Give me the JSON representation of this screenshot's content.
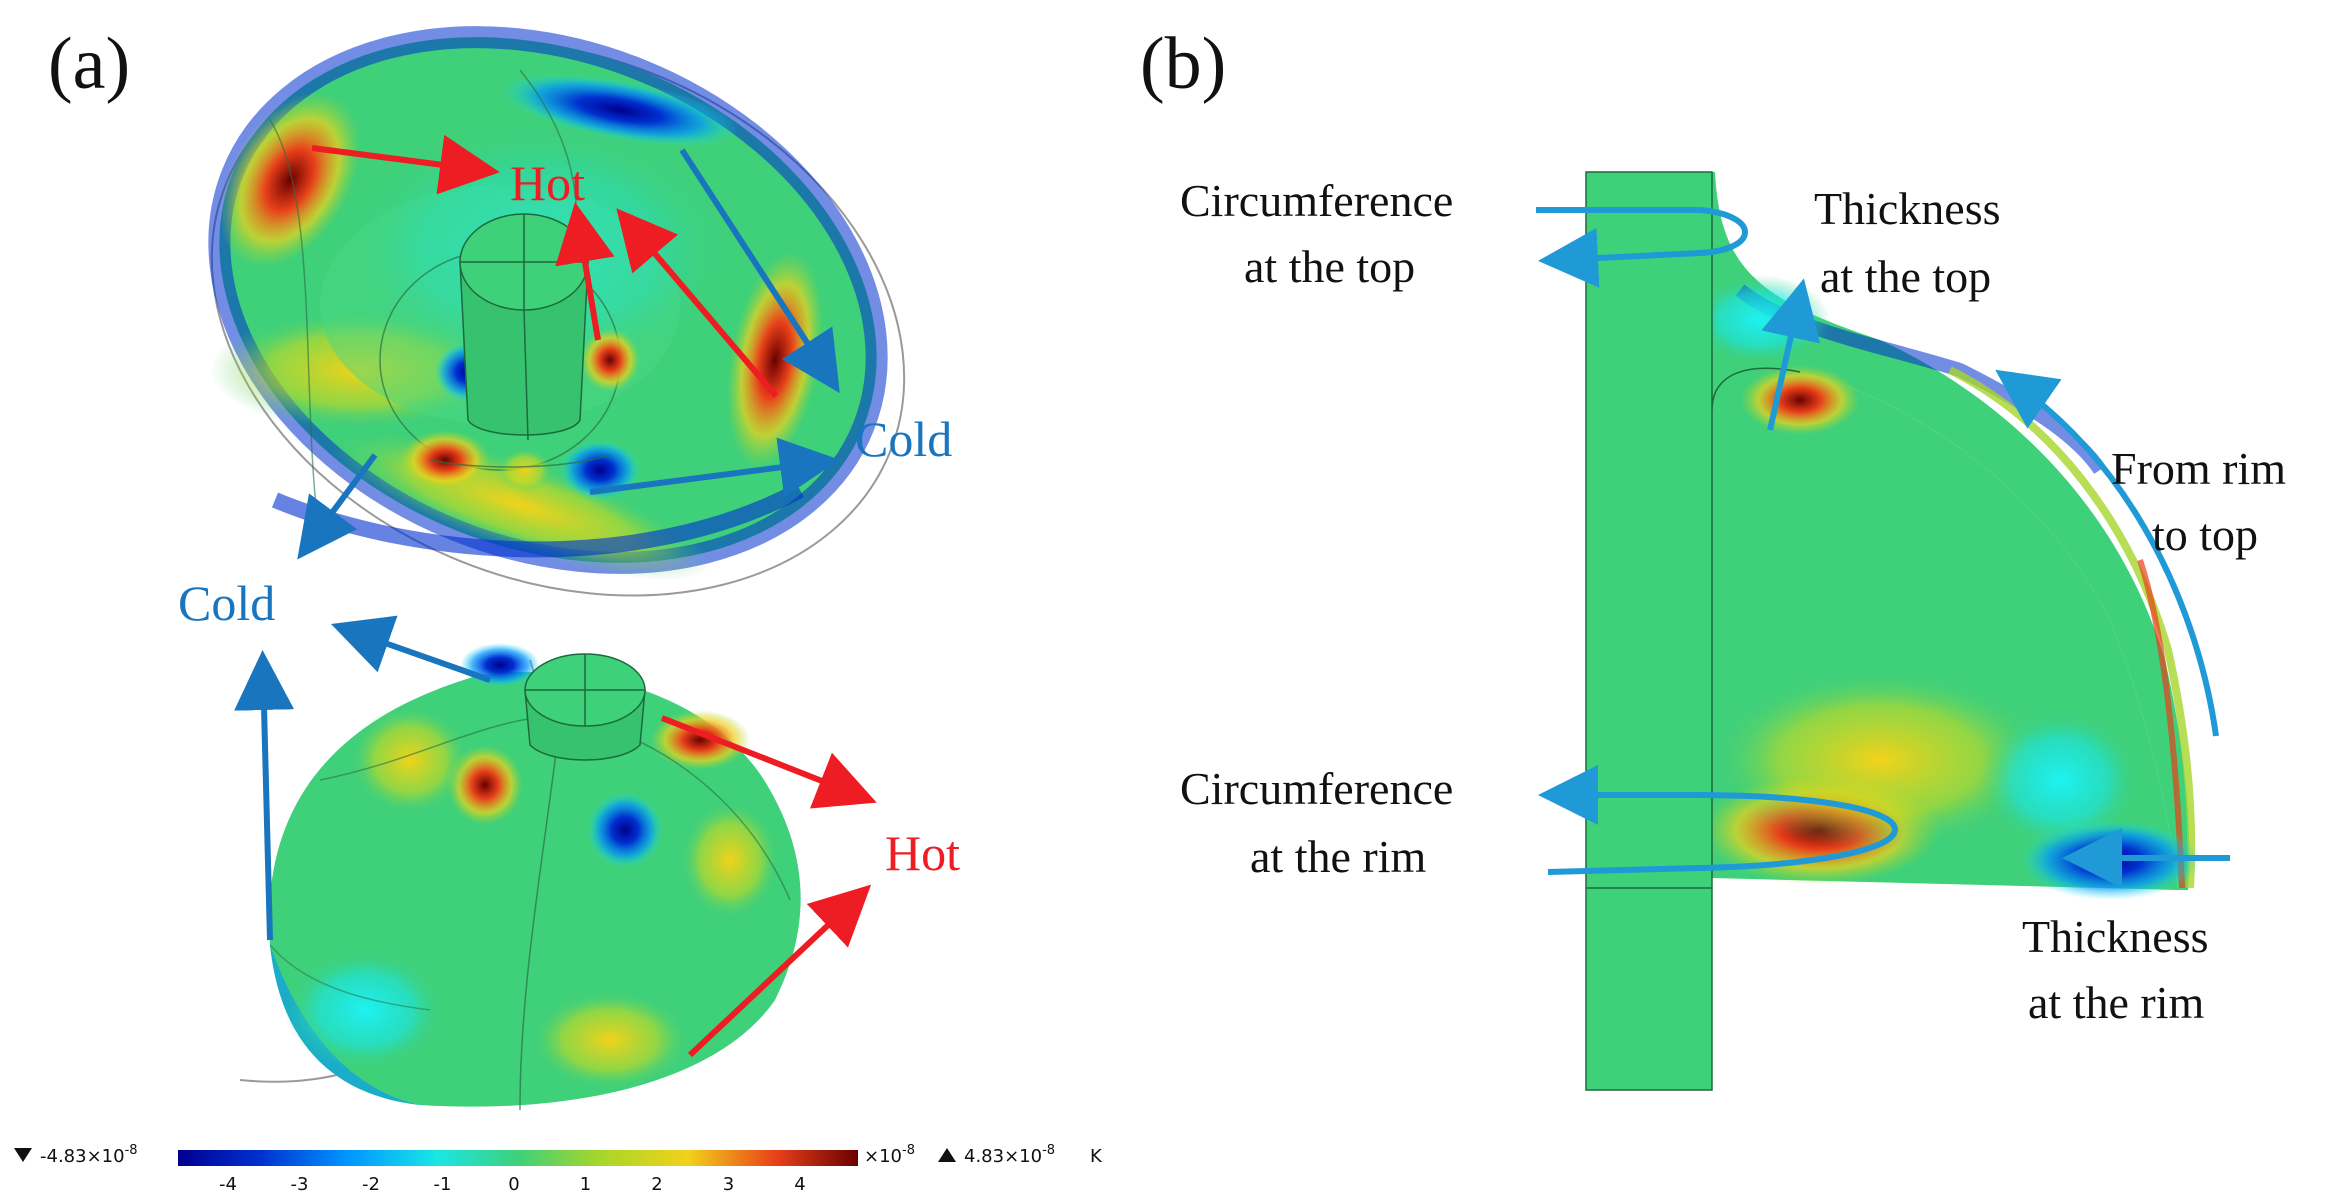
{
  "panels": {
    "a": {
      "label": "(a)"
    },
    "b": {
      "label": "(b)"
    }
  },
  "annotations_a": {
    "hot_top": "Hot",
    "cold_right": "Cold",
    "cold_left": "Cold",
    "hot_bottom": "Hot"
  },
  "annotations_b": {
    "circ_top_1": "Circumference",
    "circ_top_2": "at the top",
    "thick_top_1": "Thickness",
    "thick_top_2": "at the top",
    "rim_top_1": "From rim",
    "rim_top_2": "to top",
    "circ_rim_1": "Circumference",
    "circ_rim_2": "at the rim",
    "thick_rim_1": "Thickness",
    "thick_rim_2": "at the rim"
  },
  "colors": {
    "hot": "#ee1c23",
    "cold": "#1a75bf",
    "arrow_blue": "#1f9ad6",
    "field_green": "#3fd07a"
  },
  "colorbar": {
    "min_label": "-4.83×10",
    "min_exp": "-8",
    "max_label": "4.83×10",
    "max_exp": "-8",
    "scale_label": "×10",
    "scale_exp": "-8",
    "unit": "K",
    "ticks": [
      "-4",
      "-3",
      "-2",
      "-1",
      "0",
      "1",
      "2",
      "3",
      "4"
    ]
  }
}
